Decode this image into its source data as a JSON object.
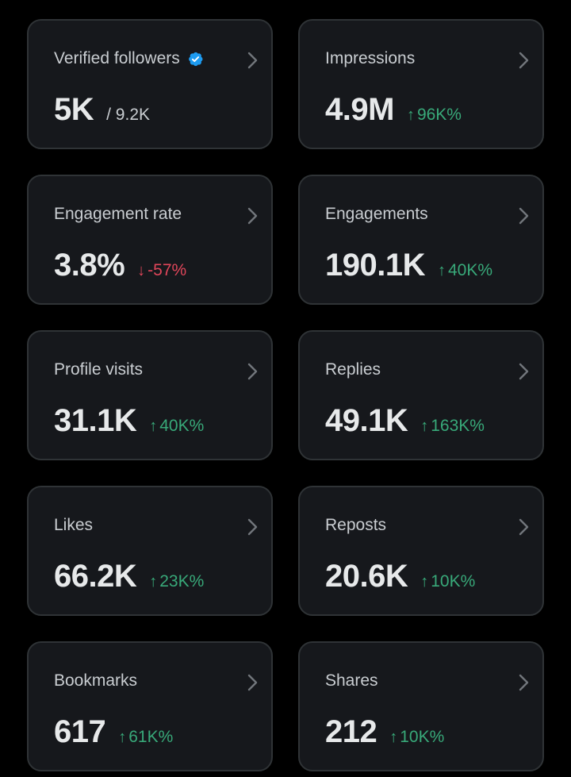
{
  "colors": {
    "background": "#000000",
    "card": "#16181c",
    "border": "#2f3336",
    "up": "#38a979",
    "down": "#e0465a",
    "verified": "#1d9bf0"
  },
  "cards": [
    {
      "title": "Verified followers",
      "value": "5K",
      "sub": "/ 9.2K",
      "verified_icon": "verified-badge-icon"
    },
    {
      "title": "Impressions",
      "value": "4.9M",
      "arrow": "↑",
      "delta": "96K%",
      "direction": "up"
    },
    {
      "title": "Engagement rate",
      "value": "3.8%",
      "arrow": "↓",
      "delta": "-57%",
      "direction": "down"
    },
    {
      "title": "Engagements",
      "value": "190.1K",
      "arrow": "↑",
      "delta": "40K%",
      "direction": "up"
    },
    {
      "title": "Profile visits",
      "value": "31.1K",
      "arrow": "↑",
      "delta": "40K%",
      "direction": "up"
    },
    {
      "title": "Replies",
      "value": "49.1K",
      "arrow": "↑",
      "delta": "163K%",
      "direction": "up"
    },
    {
      "title": "Likes",
      "value": "66.2K",
      "arrow": "↑",
      "delta": "23K%",
      "direction": "up"
    },
    {
      "title": "Reposts",
      "value": "20.6K",
      "arrow": "↑",
      "delta": "10K%",
      "direction": "up"
    },
    {
      "title": "Bookmarks",
      "value": "617",
      "arrow": "↑",
      "delta": "61K%",
      "direction": "up"
    },
    {
      "title": "Shares",
      "value": "212",
      "arrow": "↑",
      "delta": "10K%",
      "direction": "up"
    }
  ]
}
